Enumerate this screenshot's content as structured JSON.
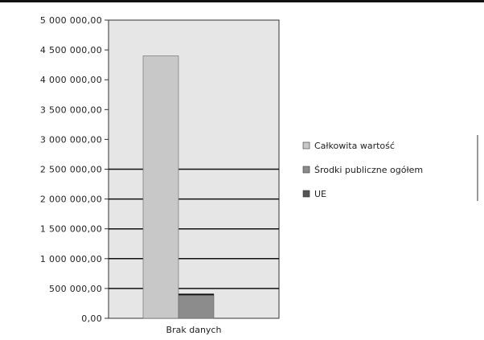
{
  "chart_data": {
    "type": "bar",
    "categories": [
      "Brak danych"
    ],
    "series": [
      {
        "name": "Całkowita wartość",
        "values": [
          4400000
        ],
        "color": "#c8c8c8"
      },
      {
        "name": "Środki publiczne ogółem",
        "values": [
          400000
        ],
        "color": "#8c8c8c"
      },
      {
        "name": "UE",
        "values": [
          0
        ],
        "color": "#555555"
      }
    ],
    "y_ticks": [
      0,
      500000,
      1000000,
      1500000,
      2000000,
      2500000,
      3000000,
      3500000,
      4000000,
      4500000,
      5000000
    ],
    "y_tick_labels": [
      "0,00",
      "500 000,00",
      "1 000 000,00",
      "1 500 000,00",
      "2 000 000,00",
      "2 500 000,00",
      "3 000 000,00",
      "3 500 000,00",
      "4 000 000,00",
      "4 500 000,00",
      "5 000 000,00"
    ],
    "ylim": [
      0,
      5000000
    ],
    "title": "",
    "xlabel": "",
    "ylabel": "",
    "legend_position": "right",
    "plot_background": "#e6e6e6",
    "grid": true
  }
}
